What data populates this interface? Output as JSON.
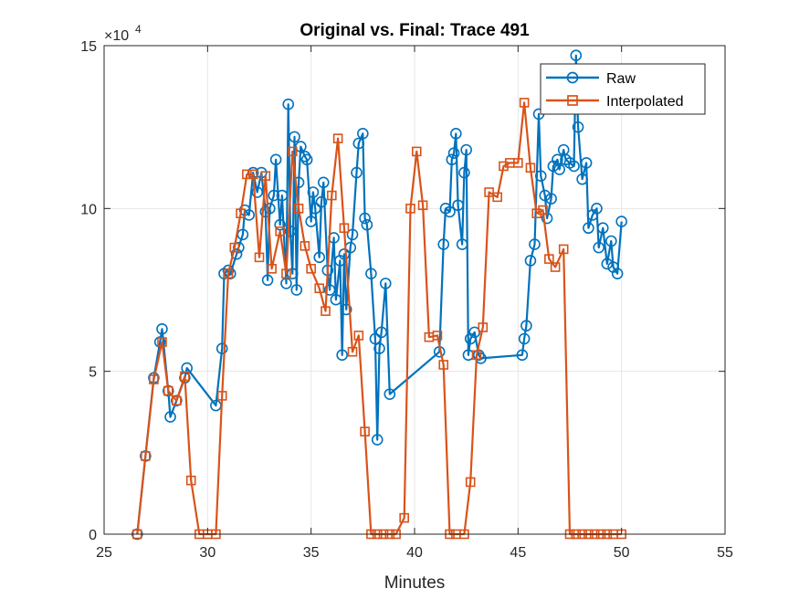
{
  "chart_data": {
    "type": "line",
    "title": "Original vs. Final: Trace 491",
    "xlabel": "Minutes",
    "ylabel": "",
    "xlim": [
      25,
      55
    ],
    "ylim": [
      0,
      150000
    ],
    "xticks": [
      25,
      30,
      35,
      40,
      45,
      50,
      55
    ],
    "yticks": [
      0,
      50000,
      100000,
      150000
    ],
    "ytick_labels": [
      "0",
      "5",
      "10",
      "15"
    ],
    "y_exponent_label": "×10",
    "y_exponent_power": "4",
    "grid": true,
    "legend_position": "top-right",
    "series": [
      {
        "name": "Raw",
        "color": "#0072BD",
        "marker": "circle",
        "x": [
          26.6,
          27.0,
          27.4,
          27.7,
          27.8,
          28.1,
          28.2,
          28.5,
          28.9,
          29.0,
          30.4,
          30.7,
          30.8,
          31.0,
          31.1,
          31.4,
          31.5,
          31.7,
          31.8,
          32.0,
          32.2,
          32.4,
          32.6,
          32.8,
          32.9,
          33.0,
          33.2,
          33.3,
          33.5,
          33.6,
          33.8,
          33.9,
          34.0,
          34.1,
          34.2,
          34.3,
          34.4,
          34.5,
          34.7,
          34.8,
          35.0,
          35.1,
          35.2,
          35.4,
          35.5,
          35.6,
          35.8,
          35.9,
          36.1,
          36.2,
          36.4,
          36.5,
          36.6,
          36.7,
          36.9,
          37.0,
          37.2,
          37.3,
          37.5,
          37.6,
          37.7,
          37.9,
          38.1,
          38.2,
          38.3,
          38.4,
          38.6,
          38.8,
          41.2,
          41.4,
          41.5,
          41.7,
          41.8,
          41.9,
          42.0,
          42.1,
          42.3,
          42.4,
          42.5,
          42.6,
          42.7,
          42.9,
          43.1,
          43.2,
          45.2,
          45.3,
          45.4,
          45.6,
          45.8,
          46.0,
          46.1,
          46.3,
          46.4,
          46.6,
          46.7,
          46.9,
          47.0,
          47.2,
          47.3,
          47.5,
          47.7,
          47.8,
          47.9,
          48.1,
          48.3,
          48.4,
          48.6,
          48.8,
          48.9,
          49.1,
          49.3,
          49.5,
          49.6,
          49.8,
          50.0
        ],
        "y": [
          0,
          24000,
          48000,
          59000,
          63000,
          44000,
          36000,
          41000,
          48000,
          51000,
          39500,
          57000,
          80000,
          81000,
          80000,
          86000,
          88000,
          92000,
          99500,
          98000,
          111000,
          105000,
          111000,
          99000,
          78000,
          100000,
          104000,
          115000,
          95000,
          104000,
          77000,
          132000,
          93000,
          80000,
          122000,
          75000,
          108000,
          119000,
          116000,
          115000,
          96000,
          105000,
          100000,
          85000,
          102000,
          108000,
          81000,
          75000,
          91000,
          72000,
          84000,
          55000,
          86000,
          69000,
          88000,
          92000,
          111000,
          120000,
          123000,
          97000,
          95000,
          80000,
          60000,
          29000,
          57000,
          62000,
          77000,
          43000,
          56000,
          89000,
          100000,
          99000,
          115000,
          117000,
          123000,
          101000,
          89000,
          111000,
          118000,
          55000,
          60000,
          62000,
          55000,
          54000,
          55000,
          60000,
          64000,
          84000,
          89000,
          129000,
          110000,
          104000,
          97000,
          103000,
          113000,
          115000,
          112000,
          118000,
          115000,
          114000,
          113000,
          147000,
          125000,
          109000,
          114000,
          94000,
          98000,
          100000,
          88000,
          94000,
          83000,
          90000,
          82000,
          80000,
          96000
        ]
      },
      {
        "name": "Interpolated",
        "color": "#D95319",
        "marker": "square",
        "x": [
          26.6,
          27.0,
          27.4,
          27.8,
          28.1,
          28.5,
          28.9,
          29.2,
          29.6,
          30.0,
          30.4,
          30.7,
          31.0,
          31.3,
          31.6,
          31.9,
          32.2,
          32.5,
          32.8,
          33.1,
          33.5,
          33.8,
          34.1,
          34.4,
          34.7,
          35.0,
          35.4,
          35.7,
          36.0,
          36.3,
          36.6,
          37.0,
          37.3,
          37.6,
          37.9,
          38.2,
          38.5,
          38.8,
          39.1,
          39.5,
          39.8,
          40.1,
          40.4,
          40.7,
          41.1,
          41.4,
          41.7,
          42.0,
          42.4,
          42.7,
          43.0,
          43.3,
          43.6,
          44.0,
          44.3,
          44.6,
          45.0,
          45.3,
          45.6,
          45.9,
          46.2,
          46.5,
          46.8,
          47.2,
          47.5,
          47.8,
          48.1,
          48.4,
          48.7,
          49.0,
          49.3,
          49.6,
          50.0
        ],
        "y": [
          0,
          24000,
          47500,
          59000,
          44000,
          41000,
          48500,
          16500,
          0,
          0,
          0,
          42500,
          80000,
          88000,
          98500,
          110500,
          110500,
          85000,
          110000,
          81500,
          93000,
          80000,
          117500,
          100000,
          88500,
          81500,
          75500,
          68500,
          104000,
          121500,
          94000,
          56000,
          61000,
          31500,
          0,
          0,
          0,
          0,
          0,
          5000,
          100000,
          117500,
          101000,
          60500,
          61000,
          52000,
          0,
          0,
          0,
          16000,
          55000,
          63500,
          105000,
          103500,
          113000,
          114000,
          114000,
          132500,
          112500,
          98500,
          99500,
          84500,
          82000,
          87500,
          0,
          0,
          0,
          0,
          0,
          0,
          0,
          0,
          0
        ]
      }
    ]
  }
}
